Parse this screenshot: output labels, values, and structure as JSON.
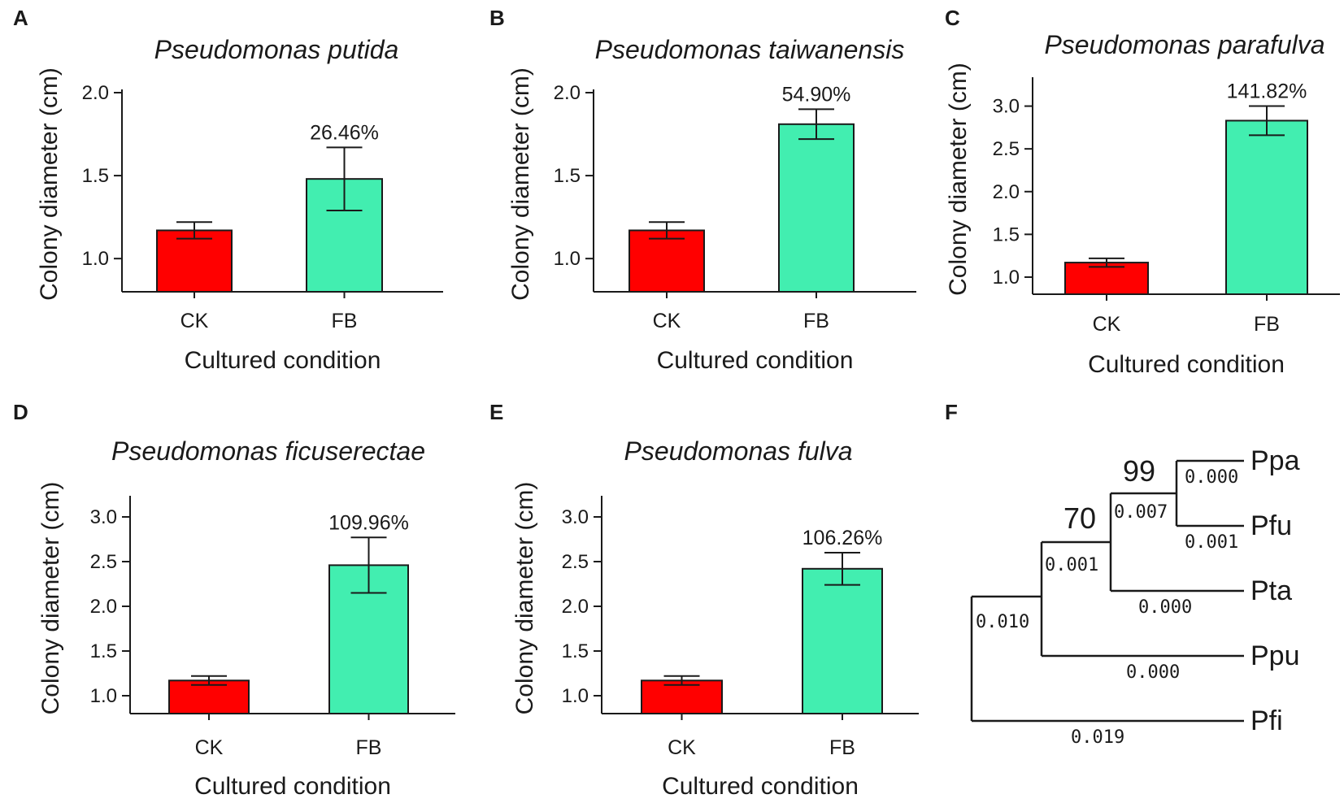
{
  "colors": {
    "CK": "#ff0000",
    "FB": "#42eeb0",
    "axis": "#1a1a1a"
  },
  "chart_data": [
    {
      "panel": "A",
      "type": "bar",
      "title": "Pseudomonas putida",
      "categories": [
        "CK",
        "FB"
      ],
      "values": [
        1.17,
        1.48
      ],
      "errors": [
        0.05,
        0.19
      ],
      "ylim": [
        0.8,
        2.0
      ],
      "yticks": [
        "1.0",
        "1.5",
        "2.0"
      ],
      "xlabel": "Cultured condition",
      "ylabel": "Colony diameter (cm)",
      "annotation": "26.46%"
    },
    {
      "panel": "B",
      "type": "bar",
      "title": "Pseudomonas taiwanensis",
      "categories": [
        "CK",
        "FB"
      ],
      "values": [
        1.17,
        1.81
      ],
      "errors": [
        0.05,
        0.09
      ],
      "ylim": [
        0.8,
        2.0
      ],
      "yticks": [
        "1.0",
        "1.5",
        "2.0"
      ],
      "xlabel": "Cultured condition",
      "ylabel": "Colony diameter (cm)",
      "annotation": "54.90%"
    },
    {
      "panel": "C",
      "type": "bar",
      "title": "Pseudomonas parafulva",
      "categories": [
        "CK",
        "FB"
      ],
      "values": [
        1.17,
        2.83
      ],
      "errors": [
        0.05,
        0.17
      ],
      "ylim": [
        0.8,
        3.3
      ],
      "yticks": [
        "1.0",
        "1.5",
        "2.0",
        "2.5",
        "3.0"
      ],
      "xlabel": "Cultured condition",
      "ylabel": "Colony diameter (cm)",
      "annotation": "141.82%"
    },
    {
      "panel": "D",
      "type": "bar",
      "title": "Pseudomonas ficuserectae",
      "categories": [
        "CK",
        "FB"
      ],
      "values": [
        1.17,
        2.46
      ],
      "errors": [
        0.05,
        0.31
      ],
      "ylim": [
        0.8,
        3.2
      ],
      "yticks": [
        "1.0",
        "1.5",
        "2.0",
        "2.5",
        "3.0"
      ],
      "xlabel": "Cultured condition",
      "ylabel": "Colony diameter (cm)",
      "annotation": "109.96%"
    },
    {
      "panel": "E",
      "type": "bar",
      "title": "Pseudomonas fulva",
      "categories": [
        "CK",
        "FB"
      ],
      "values": [
        1.17,
        2.42
      ],
      "errors": [
        0.05,
        0.18
      ],
      "ylim": [
        0.8,
        3.2
      ],
      "yticks": [
        "1.0",
        "1.5",
        "2.0",
        "2.5",
        "3.0"
      ],
      "xlabel": "Cultured condition",
      "ylabel": "Colony diameter (cm)",
      "annotation": "106.26%"
    }
  ],
  "tree": {
    "panel": "F",
    "tips": [
      "Ppa",
      "Pfu",
      "Pta",
      "Ppu",
      "Pfi"
    ],
    "branch_lengths": {
      "Ppa": "0.000",
      "Pfu": "0.001",
      "Pta": "0.000",
      "Ppu": "0.000",
      "Pfi": "0.019",
      "node_ppa_pfu": "0.007",
      "node_ppa_pfu_pta": "0.001",
      "node_root_clade": "0.010"
    },
    "bootstrap": {
      "node_ppa_pfu": "99",
      "node_ppa_pfu_pta": "70"
    }
  }
}
